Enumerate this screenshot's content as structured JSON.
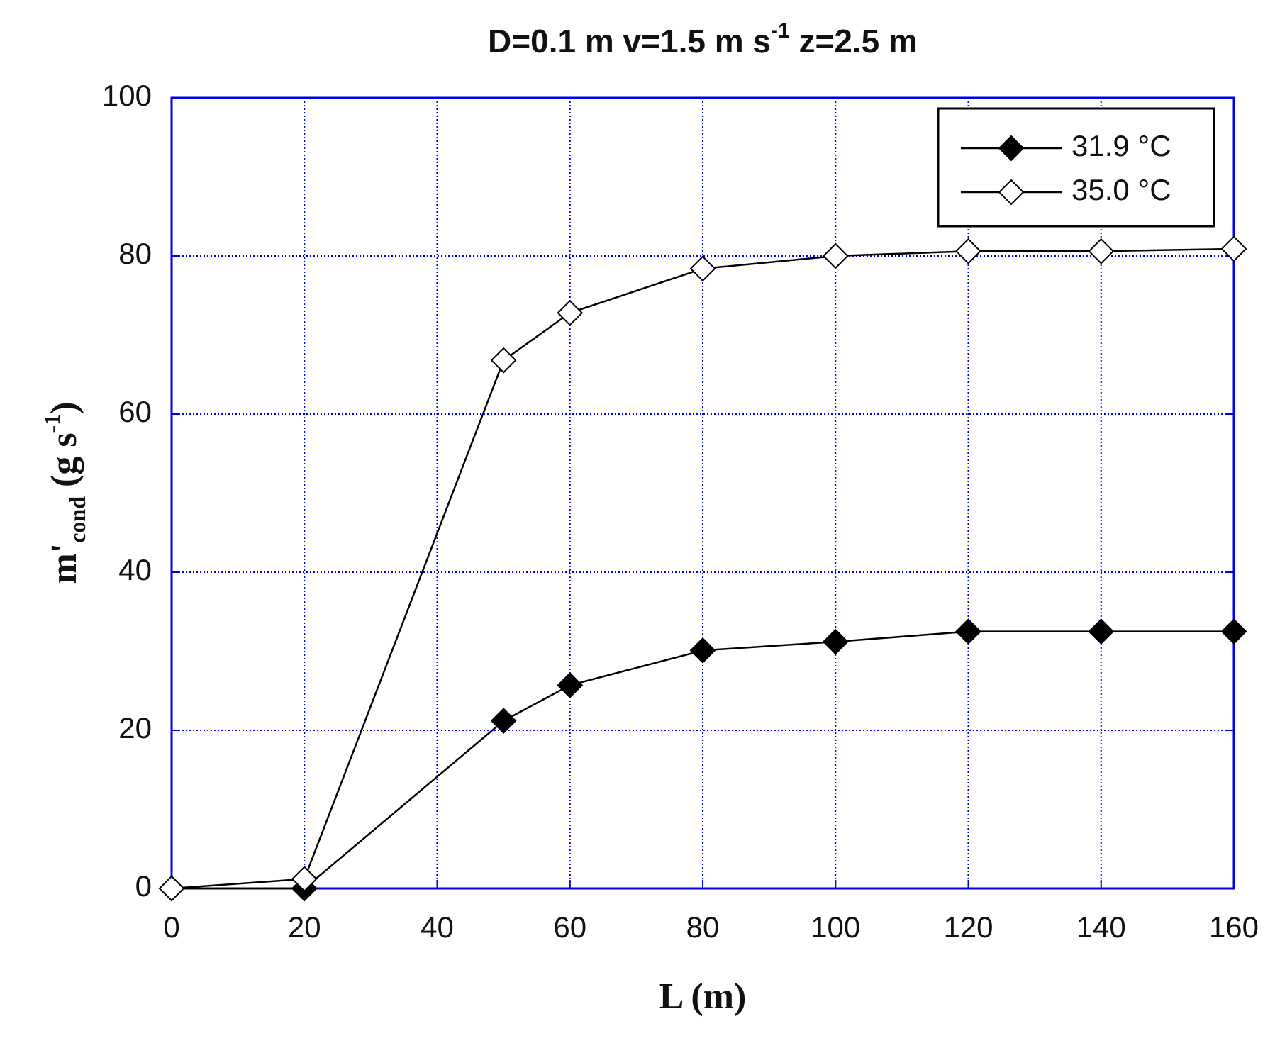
{
  "chart_data": {
    "type": "line",
    "title": [
      "D=0.1 m v=1.5 m s",
      "-1",
      " z=2.5 m"
    ],
    "xlabel": "L (m)",
    "ylabel": [
      "m'",
      "cond",
      " (g s",
      "-1",
      ")"
    ],
    "x": [
      0,
      20,
      50,
      60,
      80,
      100,
      120,
      140,
      160
    ],
    "series": [
      {
        "name": "31.9 °C",
        "color": "#000000",
        "marker": "diamond",
        "marker_fill": "#000000",
        "values": [
          0,
          0,
          21.2,
          25.7,
          30.1,
          31.2,
          32.5,
          32.5,
          32.5
        ]
      },
      {
        "name": "35.0 °C",
        "color": "#000000",
        "marker": "diamond",
        "marker_fill": "#ffffff",
        "values": [
          0,
          1.2,
          66.8,
          72.8,
          78.4,
          80.0,
          80.6,
          80.6,
          80.9
        ]
      }
    ],
    "xlim": [
      0,
      160
    ],
    "xticks": [
      0,
      20,
      40,
      60,
      80,
      100,
      120,
      140,
      160
    ],
    "ylim": [
      0,
      100
    ],
    "yticks": [
      0,
      20,
      40,
      60,
      80,
      100
    ],
    "grid": true,
    "grid_color": "#0000ee",
    "legend": "upper right"
  }
}
